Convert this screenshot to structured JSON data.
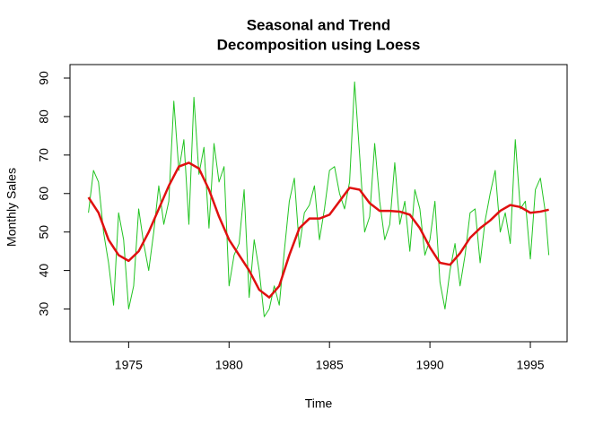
{
  "chart_data": {
    "type": "line",
    "title": [
      "Seasonal and Trend",
      "Decomposition using Loess"
    ],
    "x_label": "Time",
    "y_label": "Monthly Sales",
    "xlim": [
      1972.08,
      1996.83
    ],
    "xticks": [
      1975,
      1980,
      1985,
      1990,
      1995
    ],
    "ylim": [
      21.5,
      93.5
    ],
    "yticks": [
      30,
      40,
      50,
      60,
      70,
      80,
      90
    ],
    "series": [
      {
        "color": "#22c422",
        "x": [
          1973,
          1973.25,
          1973.5,
          1973.75,
          1974,
          1974.25,
          1974.5,
          1974.75,
          1975,
          1975.25,
          1975.5,
          1975.75,
          1976,
          1976.25,
          1976.5,
          1976.75,
          1977,
          1977.25,
          1977.5,
          1977.75,
          1978,
          1978.25,
          1978.5,
          1978.75,
          1979,
          1979.25,
          1979.5,
          1979.75,
          1980,
          1980.25,
          1980.5,
          1980.75,
          1981,
          1981.25,
          1981.5,
          1981.75,
          1982,
          1982.25,
          1982.5,
          1982.75,
          1983,
          1983.25,
          1983.5,
          1983.75,
          1984,
          1984.25,
          1984.5,
          1984.75,
          1985,
          1985.25,
          1985.5,
          1985.75,
          1986,
          1986.25,
          1986.5,
          1986.75,
          1987,
          1987.25,
          1987.5,
          1987.75,
          1988,
          1988.25,
          1988.5,
          1988.75,
          1989,
          1989.25,
          1989.5,
          1989.75,
          1990,
          1990.25,
          1990.5,
          1990.75,
          1991,
          1991.25,
          1991.5,
          1991.75,
          1992,
          1992.25,
          1992.5,
          1992.75,
          1993,
          1993.25,
          1993.5,
          1993.75,
          1994,
          1994.25,
          1994.5,
          1994.75,
          1995,
          1995.25,
          1995.5,
          1995.75,
          1995.92
        ],
        "values": [
          55,
          66,
          63,
          50,
          42,
          31,
          55,
          48,
          30,
          36,
          56,
          47,
          40,
          50,
          62,
          52,
          58,
          84,
          66,
          74,
          52,
          85,
          65,
          72,
          51,
          73,
          63,
          67,
          36,
          44,
          47,
          61,
          33,
          48,
          40,
          28,
          30,
          36,
          31,
          45,
          58,
          64,
          46,
          55,
          57,
          62,
          48,
          56,
          66,
          67,
          60,
          56,
          63,
          89,
          70,
          50,
          54,
          73,
          58,
          48,
          52,
          68,
          52,
          58,
          45,
          61,
          56,
          44,
          48,
          58,
          37,
          30,
          40,
          47,
          36,
          44,
          55,
          56,
          42,
          53,
          60,
          66,
          50,
          55,
          47,
          74,
          56,
          58,
          43,
          61,
          64,
          55,
          44
        ]
      },
      {
        "color": "#e01010",
        "x": [
          1973,
          1973.5,
          1974,
          1974.5,
          1975,
          1975.5,
          1976,
          1976.5,
          1977,
          1977.5,
          1978,
          1978.5,
          1979,
          1979.5,
          1980,
          1980.5,
          1981,
          1981.5,
          1982,
          1982.5,
          1983,
          1983.5,
          1984,
          1984.5,
          1985,
          1985.5,
          1986,
          1986.5,
          1987,
          1987.5,
          1988,
          1988.5,
          1989,
          1989.5,
          1990,
          1990.5,
          1991,
          1991.5,
          1992,
          1992.5,
          1993,
          1993.5,
          1994,
          1994.5,
          1995,
          1995.5,
          1995.92
        ],
        "values": [
          59,
          55,
          48,
          44,
          42.5,
          45,
          50,
          56,
          62,
          67,
          68,
          66.5,
          61,
          54,
          48,
          44,
          40,
          35,
          33,
          36,
          44,
          51,
          53.5,
          53.5,
          54.5,
          58,
          61.5,
          61,
          57.5,
          55.5,
          55.5,
          55.3,
          54.5,
          51,
          46,
          42,
          41.5,
          44.5,
          48.5,
          51,
          53,
          55.5,
          57,
          56.5,
          55,
          55.3,
          55.8
        ]
      }
    ]
  }
}
